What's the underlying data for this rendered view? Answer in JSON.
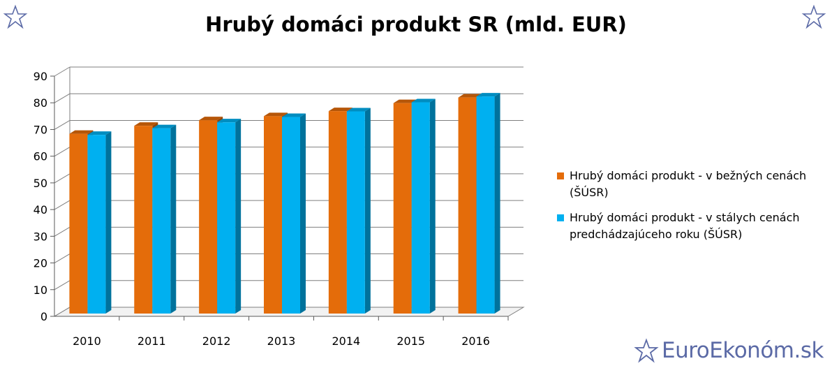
{
  "chart_data": {
    "type": "bar",
    "title": "Hrubý domáci produkt SR (mld. EUR)",
    "categories": [
      "2010",
      "2011",
      "2012",
      "2013",
      "2014",
      "2015",
      "2016"
    ],
    "series": [
      {
        "name": "Hrubý domáci produkt - v bežných cenách (ŠÚSR)",
        "color": "#e46c0a",
        "values": [
          67.6,
          70.6,
          72.7,
          74.2,
          76.1,
          79.1,
          81.2
        ]
      },
      {
        "name": "Hrubý domáci produkt - v stálych cenách predchádzajúceho roku (ŠÚSR)",
        "color": "#00b0f0",
        "values": [
          67.2,
          69.7,
          71.9,
          73.9,
          76.0,
          79.4,
          81.6
        ]
      }
    ],
    "y_ticks": [
      "0",
      "10",
      "20",
      "30",
      "40",
      "50",
      "60",
      "70",
      "80",
      "90"
    ],
    "ylim": [
      0,
      90
    ],
    "grid": true,
    "legend_position": "right"
  },
  "brand": {
    "text": "EuroEkonóm.sk",
    "color": "#5b6aa6",
    "icon": "star-outline-icon"
  }
}
